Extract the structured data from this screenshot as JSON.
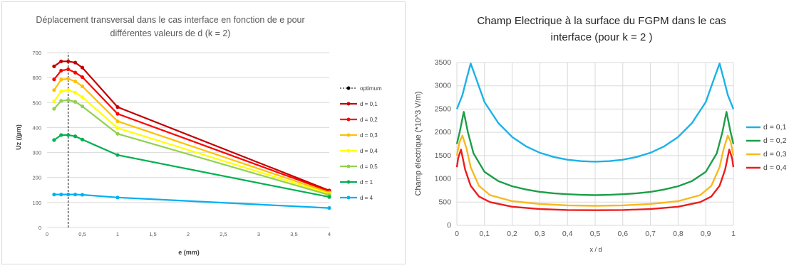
{
  "chart_data": [
    {
      "type": "line",
      "title": "Déplacement transversal dans le cas interface en fonction de e pour différentes valeurs de d (k = 2)",
      "title_lines": [
        "Déplacement transversal dans le cas interface en fonction de e pour",
        "différentes valeurs de d (k = 2)"
      ],
      "xlabel": "e (mm)",
      "ylabel": "Uz ((µm)",
      "xlim": [
        0,
        4
      ],
      "ylim": [
        0,
        700
      ],
      "x_ticks": [
        "0",
        "0,5",
        "1",
        "1,5",
        "2",
        "2,5",
        "3",
        "3,5",
        "4"
      ],
      "y_ticks": [
        "0",
        "100",
        "200",
        "300",
        "400",
        "500",
        "600",
        "700"
      ],
      "grid": true,
      "legend_position": "right",
      "x": [
        0.1,
        0.2,
        0.3,
        0.4,
        0.5,
        1,
        4
      ],
      "optimum": {
        "name": "optimum",
        "x": 0.3,
        "color": "#000000"
      },
      "series": [
        {
          "name": "d = 0,1",
          "color": "#c00000",
          "values": [
            645,
            665,
            665,
            660,
            640,
            482,
            148
          ]
        },
        {
          "name": "d = 0,2",
          "color": "#ff0000",
          "values": [
            593,
            628,
            633,
            620,
            602,
            455,
            145
          ]
        },
        {
          "name": "d = 0,3",
          "color": "#ffc000",
          "values": [
            550,
            592,
            595,
            585,
            565,
            425,
            140
          ]
        },
        {
          "name": "d = 0,4",
          "color": "#ffff00",
          "values": [
            505,
            545,
            550,
            540,
            522,
            398,
            135
          ]
        },
        {
          "name": "d = 0,5",
          "color": "#92d050",
          "values": [
            475,
            507,
            510,
            503,
            485,
            375,
            130
          ]
        },
        {
          "name": "d = 1",
          "color": "#00b050",
          "values": [
            350,
            370,
            370,
            365,
            352,
            290,
            122
          ]
        },
        {
          "name": "d = 4",
          "color": "#00b0f0",
          "values": [
            132,
            132,
            132,
            132,
            131,
            120,
            78
          ]
        }
      ]
    },
    {
      "type": "line",
      "title": "Champ Electrique à la surface du FGPM dans le cas interface (pour k = 2 )",
      "title_lines": [
        "Champ Electrique à la surface du FGPM dans le cas",
        "interface (pour k = 2 )"
      ],
      "xlabel": "x / d",
      "ylabel": "Champ électrique (*10^3 V/m)",
      "xlim": [
        0,
        1
      ],
      "ylim": [
        0,
        3500
      ],
      "x_ticks": [
        "0",
        "0,1",
        "0,2",
        "0,3",
        "0,4",
        "0,5",
        "0,6",
        "0,7",
        "0,8",
        "0,9",
        "1"
      ],
      "y_ticks": [
        "0",
        "500",
        "1000",
        "1500",
        "2000",
        "2500",
        "3000",
        "3500"
      ],
      "grid": true,
      "legend_position": "right",
      "series": [
        {
          "name": "d = 0,1",
          "color": "#1ab2e8",
          "x": [
            0,
            0.02,
            0.035,
            0.05,
            0.07,
            0.1,
            0.15,
            0.2,
            0.25,
            0.3,
            0.35,
            0.4,
            0.45,
            0.5,
            0.55,
            0.6,
            0.65,
            0.7,
            0.75,
            0.8,
            0.85,
            0.9,
            0.93,
            0.95,
            0.965,
            0.98,
            1
          ],
          "values": [
            2500,
            2800,
            3150,
            3480,
            3150,
            2650,
            2200,
            1900,
            1700,
            1560,
            1470,
            1410,
            1380,
            1370,
            1380,
            1410,
            1470,
            1560,
            1700,
            1900,
            2200,
            2650,
            3150,
            3480,
            3150,
            2800,
            2500
          ]
        },
        {
          "name": "d = 0,2",
          "color": "#1c9e48",
          "x": [
            0,
            0.01,
            0.025,
            0.04,
            0.06,
            0.1,
            0.15,
            0.2,
            0.25,
            0.3,
            0.35,
            0.4,
            0.45,
            0.5,
            0.55,
            0.6,
            0.65,
            0.7,
            0.75,
            0.8,
            0.85,
            0.9,
            0.94,
            0.96,
            0.975,
            0.99,
            1
          ],
          "values": [
            1750,
            2000,
            2440,
            2000,
            1550,
            1150,
            950,
            840,
            770,
            720,
            690,
            670,
            655,
            650,
            655,
            670,
            690,
            720,
            770,
            840,
            950,
            1150,
            1550,
            2000,
            2440,
            2000,
            1750
          ]
        },
        {
          "name": "d = 0,3",
          "color": "#f8b81f",
          "x": [
            0,
            0.01,
            0.02,
            0.035,
            0.05,
            0.08,
            0.12,
            0.2,
            0.3,
            0.4,
            0.5,
            0.6,
            0.7,
            0.8,
            0.88,
            0.92,
            0.95,
            0.965,
            0.98,
            0.99,
            1
          ],
          "values": [
            1500,
            1800,
            1930,
            1650,
            1250,
            850,
            650,
            520,
            460,
            430,
            420,
            430,
            460,
            520,
            650,
            850,
            1250,
            1650,
            1930,
            1800,
            1500
          ]
        },
        {
          "name": "d = 0,4",
          "color": "#ee1c1c",
          "x": [
            0,
            0.005,
            0.015,
            0.03,
            0.05,
            0.08,
            0.12,
            0.2,
            0.3,
            0.4,
            0.5,
            0.6,
            0.7,
            0.8,
            0.88,
            0.92,
            0.95,
            0.97,
            0.985,
            0.995,
            1
          ],
          "values": [
            1250,
            1450,
            1630,
            1200,
            850,
            620,
            500,
            400,
            350,
            330,
            325,
            330,
            350,
            400,
            500,
            620,
            850,
            1200,
            1630,
            1450,
            1250
          ]
        }
      ]
    }
  ]
}
